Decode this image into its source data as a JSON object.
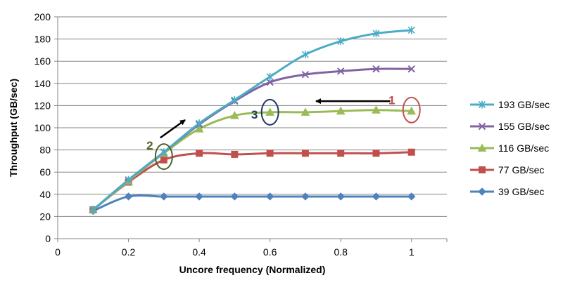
{
  "chart_data": {
    "type": "line",
    "xlabel": "Uncore frequency (Normalized)",
    "ylabel": "Throughput (GB/sec)",
    "xlim": [
      0,
      1.1
    ],
    "ylim": [
      0,
      200
    ],
    "x_ticks": [
      0,
      0.2,
      0.4,
      0.6,
      0.8,
      1
    ],
    "x_tick_labels": [
      "0",
      "0.2",
      "0.4",
      "0.6",
      "0.8",
      "1"
    ],
    "y_ticks": [
      0,
      20,
      40,
      60,
      80,
      100,
      120,
      140,
      160,
      180,
      200
    ],
    "y_tick_labels": [
      "0",
      "20",
      "40",
      "60",
      "80",
      "100",
      "120",
      "140",
      "160",
      "180",
      "200"
    ],
    "grid": "horizontal",
    "legend_position": "right",
    "x": [
      0.1,
      0.2,
      0.3,
      0.4,
      0.5,
      0.6,
      0.7,
      0.8,
      0.9,
      1.0
    ],
    "series": [
      {
        "name": "193 GB/sec",
        "color": "#4BACC6",
        "marker": "asterisk",
        "values": [
          26,
          53,
          78,
          104,
          125,
          146,
          166,
          178,
          185,
          188
        ]
      },
      {
        "name": "155 GB/sec",
        "color": "#8064A2",
        "marker": "x",
        "values": [
          26,
          53,
          78,
          103,
          124,
          141,
          148,
          151,
          153,
          153
        ]
      },
      {
        "name": "116 GB/sec",
        "color": "#9BBB59",
        "marker": "triangle",
        "values": [
          26,
          52,
          77,
          99,
          111,
          114,
          114,
          115,
          116,
          115
        ]
      },
      {
        "name": "77 GB/sec",
        "color": "#C0504D",
        "marker": "square",
        "values": [
          26,
          51,
          71,
          77,
          76,
          77,
          77,
          77,
          77,
          78
        ]
      },
      {
        "name": "39 GB/sec",
        "color": "#4F81BD",
        "marker": "diamond",
        "values": [
          25,
          38,
          38,
          38,
          38,
          38,
          38,
          38,
          38,
          38
        ]
      }
    ],
    "annotations": [
      {
        "label": "1",
        "color": "#C0504D",
        "circle_at": {
          "x": 1.0,
          "y": 116
        },
        "arrow": {
          "from": {
            "x": 0.94,
            "y": 124
          },
          "to": {
            "x": 0.73,
            "y": 124
          }
        }
      },
      {
        "label": "2",
        "color": "#4F6228",
        "circle_at": {
          "x": 0.3,
          "y": 74
        },
        "arrow": {
          "from": {
            "x": 0.29,
            "y": 91
          },
          "to": {
            "x": 0.36,
            "y": 107
          }
        }
      },
      {
        "label": "3",
        "color": "#1F3864",
        "circle_at": {
          "x": 0.6,
          "y": 114
        }
      }
    ]
  }
}
